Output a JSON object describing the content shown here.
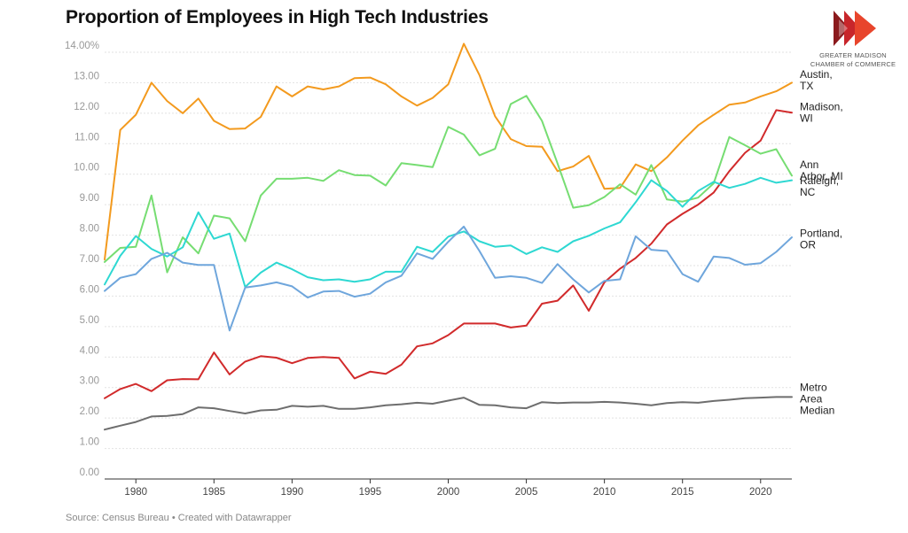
{
  "header": {
    "title": "Proportion of Employees in High Tech Industries"
  },
  "logo": {
    "line1": "GREATER MADISON",
    "line2": "CHAMBER of COMMERCE",
    "colors": [
      "#c8262b",
      "#e8452c",
      "#8b1a1d"
    ]
  },
  "footer": {
    "source": "Source: Census Bureau • Created with Datawrapper"
  },
  "chart_data": {
    "type": "line",
    "title": "Proportion of Employees in High Tech Industries",
    "xlabel": "",
    "ylabel": "",
    "xlim": [
      1978,
      2022
    ],
    "ylim": [
      0,
      14
    ],
    "grid": true,
    "legend": "direct labels at right end of lines",
    "y_ticks": [
      "0.00",
      "1.00",
      "2.00",
      "3.00",
      "4.00",
      "5.00",
      "6.00",
      "7.00",
      "8.00",
      "9.00",
      "10.00",
      "11.00",
      "12.00",
      "13.00",
      "14.00%"
    ],
    "x_ticks": [
      "1980",
      "1985",
      "1990",
      "1995",
      "2000",
      "2005",
      "2010",
      "2015",
      "2020"
    ],
    "x": [
      1978,
      1979,
      1980,
      1981,
      1982,
      1983,
      1984,
      1985,
      1986,
      1987,
      1988,
      1989,
      1990,
      1991,
      1992,
      1993,
      1994,
      1995,
      1996,
      1997,
      1998,
      1999,
      2000,
      2001,
      2002,
      2003,
      2004,
      2005,
      2006,
      2007,
      2008,
      2009,
      2010,
      2011,
      2012,
      2013,
      2014,
      2015,
      2016,
      2017,
      2018,
      2019,
      2020,
      2021,
      2022
    ],
    "series": [
      {
        "name": "Austin, TX",
        "label_lines": [
          "Austin,",
          "TX"
        ],
        "color": "#f39a1e",
        "values": [
          7.2,
          11.45,
          11.95,
          13.0,
          12.4,
          12.0,
          12.48,
          11.75,
          11.48,
          11.5,
          11.88,
          12.88,
          12.55,
          12.88,
          12.78,
          12.88,
          13.15,
          13.17,
          12.95,
          12.55,
          12.25,
          12.5,
          12.95,
          14.28,
          13.25,
          11.9,
          11.15,
          10.92,
          10.9,
          10.1,
          10.25,
          10.6,
          9.52,
          9.55,
          10.32,
          10.1,
          10.55,
          11.1,
          11.6,
          11.95,
          12.28,
          12.35,
          12.55,
          12.72,
          13.0
        ]
      },
      {
        "name": "Madison, WI",
        "label_lines": [
          "Madison,",
          "WI"
        ],
        "color": "#d12a2b",
        "values": [
          2.65,
          2.95,
          3.12,
          2.88,
          3.24,
          3.28,
          3.27,
          4.15,
          3.43,
          3.85,
          4.03,
          3.98,
          3.8,
          3.97,
          4.0,
          3.97,
          3.3,
          3.52,
          3.45,
          3.75,
          4.35,
          4.45,
          4.72,
          5.1,
          5.1,
          5.1,
          4.97,
          5.03,
          5.75,
          5.85,
          6.35,
          5.52,
          6.45,
          6.9,
          7.25,
          7.72,
          8.35,
          8.7,
          9.0,
          9.4,
          10.1,
          10.7,
          11.1,
          12.1,
          12.02
        ]
      },
      {
        "name": "Ann Arbor, MI",
        "label_lines": [
          "Ann",
          "Arbor, MI"
        ],
        "color": "#76dd72",
        "values": [
          7.12,
          7.58,
          7.62,
          9.3,
          6.78,
          7.93,
          7.4,
          8.64,
          8.55,
          7.8,
          9.3,
          9.85,
          9.85,
          9.88,
          9.78,
          10.13,
          9.97,
          9.95,
          9.63,
          10.36,
          10.3,
          10.23,
          11.55,
          11.3,
          10.62,
          10.83,
          12.3,
          12.57,
          11.75,
          10.35,
          8.9,
          8.98,
          9.25,
          9.67,
          9.33,
          10.3,
          9.17,
          9.1,
          9.23,
          9.7,
          11.22,
          10.95,
          10.67,
          10.82,
          9.95
        ]
      },
      {
        "name": "Raleigh, NC",
        "label_lines": [
          "Raleigh,",
          "NC"
        ],
        "color": "#2ed8d2",
        "values": [
          6.38,
          7.32,
          7.97,
          7.55,
          7.3,
          7.6,
          8.75,
          7.88,
          8.05,
          6.3,
          6.77,
          7.1,
          6.88,
          6.62,
          6.52,
          6.55,
          6.47,
          6.55,
          6.8,
          6.8,
          7.62,
          7.45,
          7.95,
          8.12,
          7.8,
          7.62,
          7.66,
          7.38,
          7.6,
          7.45,
          7.8,
          7.98,
          8.22,
          8.42,
          9.08,
          9.8,
          9.45,
          8.93,
          9.45,
          9.75,
          9.55,
          9.68,
          9.88,
          9.72,
          9.8
        ]
      },
      {
        "name": "Portland, OR",
        "label_lines": [
          "Portland,",
          "OR"
        ],
        "color": "#6fa6dc",
        "values": [
          6.17,
          6.6,
          6.72,
          7.22,
          7.42,
          7.1,
          7.02,
          7.02,
          4.87,
          6.28,
          6.35,
          6.45,
          6.32,
          5.95,
          6.15,
          6.17,
          5.98,
          6.08,
          6.45,
          6.67,
          7.4,
          7.22,
          7.78,
          8.28,
          7.48,
          6.6,
          6.65,
          6.6,
          6.43,
          7.05,
          6.55,
          6.12,
          6.5,
          6.55,
          7.96,
          7.52,
          7.48,
          6.72,
          6.47,
          7.3,
          7.25,
          7.03,
          7.08,
          7.45,
          7.93
        ]
      },
      {
        "name": "Metro Area Median",
        "label_lines": [
          "Metro",
          "Area",
          "Median"
        ],
        "color": "#6e6e6e",
        "values": [
          1.62,
          1.75,
          1.87,
          2.05,
          2.07,
          2.13,
          2.35,
          2.32,
          2.23,
          2.15,
          2.25,
          2.27,
          2.4,
          2.37,
          2.4,
          2.3,
          2.3,
          2.35,
          2.42,
          2.45,
          2.5,
          2.47,
          2.57,
          2.67,
          2.43,
          2.42,
          2.35,
          2.32,
          2.52,
          2.49,
          2.51,
          2.51,
          2.53,
          2.51,
          2.47,
          2.42,
          2.49,
          2.52,
          2.5,
          2.56,
          2.6,
          2.65,
          2.67,
          2.69,
          2.69
        ]
      }
    ]
  }
}
